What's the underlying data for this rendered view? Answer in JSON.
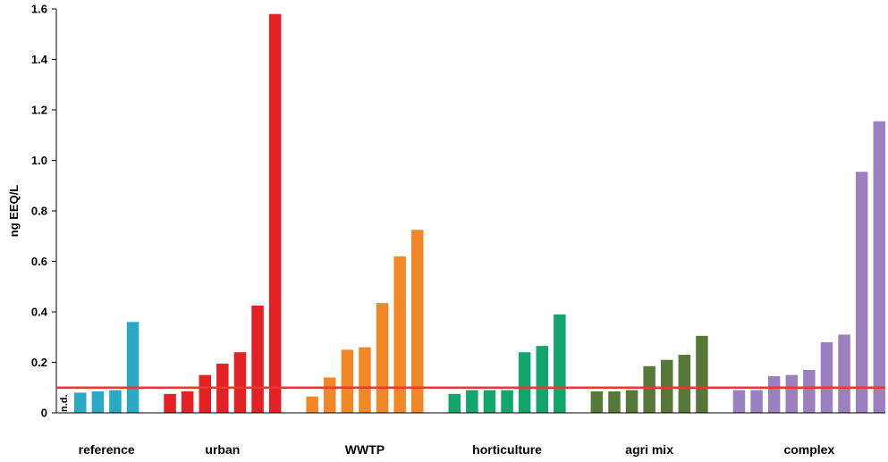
{
  "chart_data": {
    "type": "bar",
    "ylabel": "ng EEQ/L",
    "ylim": [
      0,
      1.6
    ],
    "yticks": [
      "0",
      "0.2",
      "0.4",
      "0.6",
      "0.8",
      "1.0",
      "1.2",
      "1.4",
      "1.6"
    ],
    "threshold": {
      "value": 0.1,
      "color": "#e8392b"
    },
    "nd_label": "n.d.",
    "groups": [
      {
        "name": "reference",
        "color": "#2aa9c4",
        "values": [
          0.08,
          0.085,
          0.09,
          0.36
        ]
      },
      {
        "name": "urban",
        "color": "#e32024",
        "values": [
          0.075,
          0.085,
          0.15,
          0.195,
          0.24,
          0.425,
          1.58
        ]
      },
      {
        "name": "WWTP",
        "color": "#f18727",
        "values": [
          0.065,
          0.14,
          0.25,
          0.26,
          0.435,
          0.62,
          0.725
        ]
      },
      {
        "name": "horticulture",
        "color": "#12a56c",
        "values": [
          0.075,
          0.09,
          0.09,
          0.09,
          0.24,
          0.265,
          0.39
        ]
      },
      {
        "name": "agri mix",
        "color": "#58783a",
        "values": [
          0.085,
          0.085,
          0.09,
          0.185,
          0.21,
          0.23,
          0.305
        ]
      },
      {
        "name": "complex",
        "color": "#9b80bf",
        "values": [
          0.09,
          0.09,
          0.145,
          0.15,
          0.17,
          0.28,
          0.31,
          0.955,
          1.155
        ]
      }
    ]
  }
}
